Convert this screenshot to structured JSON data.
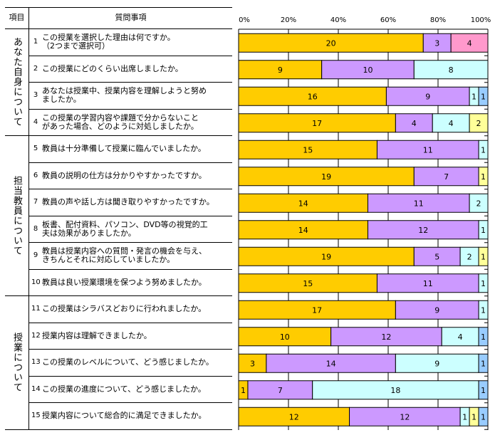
{
  "table": {
    "header_item": "項目",
    "header_question": "質問事項",
    "groups": [
      {
        "label": "あなた自身について",
        "rows": [
          0,
          3
        ]
      },
      {
        "label": "担当教員について",
        "rows": [
          4,
          9
        ]
      },
      {
        "label": "授業について",
        "rows": [
          10,
          14
        ]
      }
    ],
    "questions": [
      {
        "num": "1",
        "text": "この授業を選択した理由は何ですか。\n（2つまで選択可）"
      },
      {
        "num": "2",
        "text": "この授業にどのくらい出席しましたか。"
      },
      {
        "num": "3",
        "text": "あなたは授業中、授業内容を理解しようと努め\nましたか。"
      },
      {
        "num": "4",
        "text": "この授業の学習内容や課題で分からないこと\nがあった場合、どのように対処しましたか。"
      },
      {
        "num": "5",
        "text": "教員は十分準備して授業に臨んでいましたか。"
      },
      {
        "num": "6",
        "text": "教員の説明の仕方は分かりやすかったですか。"
      },
      {
        "num": "7",
        "text": "教員の声や話し方は聞き取りやすかったですか。"
      },
      {
        "num": "8",
        "text": "板書、配付資料、パソコン、DVD等の視覚的工\n夫は効果がありましたか。"
      },
      {
        "num": "9",
        "text": "教員は授業内容への質問・発言の機会を与え、\nきちんとそれに対応していましたか。"
      },
      {
        "num": "10",
        "text": "教員は良い授業環境を保つよう努めましたか。"
      },
      {
        "num": "11",
        "text": "この授業はシラバスどおりに行われましたか。"
      },
      {
        "num": "12",
        "text": "授業内容は理解できましたか。"
      },
      {
        "num": "13",
        "text": "この授業のレベルについて、どう感じましたか。"
      },
      {
        "num": "14",
        "text": "この授業の進度について、どう感じましたか。"
      },
      {
        "num": "15",
        "text": "授業内容について総合的に満足できましたか。"
      }
    ]
  },
  "colors": {
    "orange": "#FFCC00",
    "purple": "#CC99FF",
    "cyan": "#CCFFFF",
    "yellow": "#FFFF99",
    "blue": "#99CCFF",
    "pink": "#FF99CC"
  },
  "chart_data": {
    "type": "bar",
    "stacked_percent": true,
    "orientation": "horizontal",
    "xlim": [
      0,
      100
    ],
    "xticks": [
      "0%",
      "20%",
      "40%",
      "60%",
      "80%",
      "100%"
    ],
    "grid": true,
    "rows": [
      [
        {
          "v": 20,
          "c": "orange"
        },
        {
          "v": 3,
          "c": "purple"
        },
        {
          "v": 4,
          "c": "pink"
        }
      ],
      [
        {
          "v": 9,
          "c": "orange"
        },
        {
          "v": 10,
          "c": "purple"
        },
        {
          "v": 8,
          "c": "cyan"
        }
      ],
      [
        {
          "v": 16,
          "c": "orange"
        },
        {
          "v": 9,
          "c": "purple"
        },
        {
          "v": 1,
          "c": "cyan"
        },
        {
          "v": 1,
          "c": "blue"
        }
      ],
      [
        {
          "v": 17,
          "c": "orange"
        },
        {
          "v": 4,
          "c": "purple"
        },
        {
          "v": 4,
          "c": "cyan"
        },
        {
          "v": 2,
          "c": "yellow"
        }
      ],
      [
        {
          "v": 15,
          "c": "orange"
        },
        {
          "v": 11,
          "c": "purple"
        },
        {
          "v": 1,
          "c": "cyan"
        }
      ],
      [
        {
          "v": 19,
          "c": "orange"
        },
        {
          "v": 7,
          "c": "purple"
        },
        {
          "v": 1,
          "c": "yellow"
        }
      ],
      [
        {
          "v": 14,
          "c": "orange"
        },
        {
          "v": 11,
          "c": "purple"
        },
        {
          "v": 2,
          "c": "cyan"
        }
      ],
      [
        {
          "v": 14,
          "c": "orange"
        },
        {
          "v": 12,
          "c": "purple"
        },
        {
          "v": 1,
          "c": "cyan"
        }
      ],
      [
        {
          "v": 19,
          "c": "orange"
        },
        {
          "v": 5,
          "c": "purple"
        },
        {
          "v": 2,
          "c": "cyan"
        },
        {
          "v": 1,
          "c": "yellow"
        }
      ],
      [
        {
          "v": 15,
          "c": "orange"
        },
        {
          "v": 11,
          "c": "purple"
        },
        {
          "v": 1,
          "c": "cyan"
        }
      ],
      [
        {
          "v": 17,
          "c": "orange"
        },
        {
          "v": 9,
          "c": "purple"
        },
        {
          "v": 1,
          "c": "cyan"
        }
      ],
      [
        {
          "v": 10,
          "c": "orange"
        },
        {
          "v": 12,
          "c": "purple"
        },
        {
          "v": 4,
          "c": "cyan"
        },
        {
          "v": 1,
          "c": "blue"
        }
      ],
      [
        {
          "v": 3,
          "c": "orange"
        },
        {
          "v": 14,
          "c": "purple"
        },
        {
          "v": 9,
          "c": "cyan"
        },
        {
          "v": 1,
          "c": "blue"
        }
      ],
      [
        {
          "v": 1,
          "c": "orange"
        },
        {
          "v": 7,
          "c": "purple"
        },
        {
          "v": 18,
          "c": "cyan"
        },
        {
          "v": 1,
          "c": "blue"
        }
      ],
      [
        {
          "v": 12,
          "c": "orange"
        },
        {
          "v": 12,
          "c": "purple"
        },
        {
          "v": 1,
          "c": "cyan"
        },
        {
          "v": 1,
          "c": "yellow"
        },
        {
          "v": 1,
          "c": "blue"
        }
      ]
    ]
  }
}
